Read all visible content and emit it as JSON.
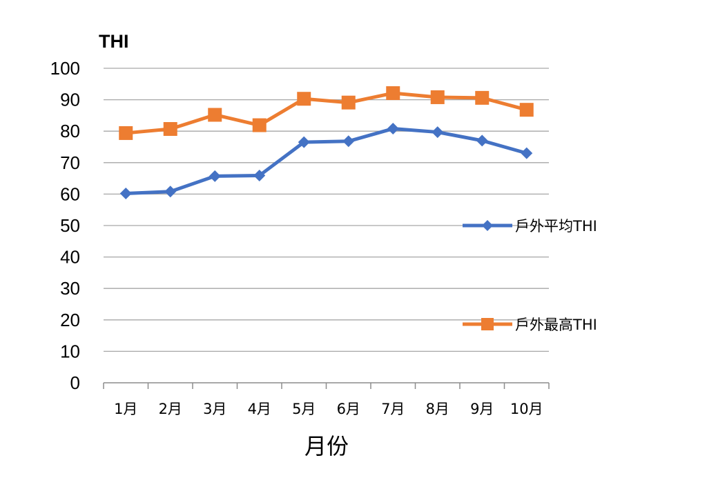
{
  "chart_data": {
    "type": "line",
    "title": "",
    "ylabel": "THI",
    "xlabel": "月份",
    "categories": [
      "1月",
      "2月",
      "3月",
      "4月",
      "5月",
      "6月",
      "7月",
      "8月",
      "9月",
      "10月"
    ],
    "ylim": [
      0,
      100
    ],
    "yticks": [
      0,
      10,
      20,
      30,
      40,
      50,
      60,
      70,
      80,
      90,
      100
    ],
    "grid": true,
    "legend_position": "right",
    "series": [
      {
        "name": "戶外平均THI",
        "marker": "diamond",
        "color": "#4472C4",
        "values": [
          60.2,
          60.8,
          65.7,
          65.9,
          76.5,
          76.8,
          80.8,
          79.7,
          77.0,
          73.0
        ]
      },
      {
        "name": "戶外最高THI",
        "marker": "square",
        "color": "#ED7D31",
        "values": [
          79.4,
          80.7,
          85.2,
          81.9,
          90.3,
          89.1,
          92.1,
          90.8,
          90.6,
          86.8
        ]
      }
    ]
  }
}
